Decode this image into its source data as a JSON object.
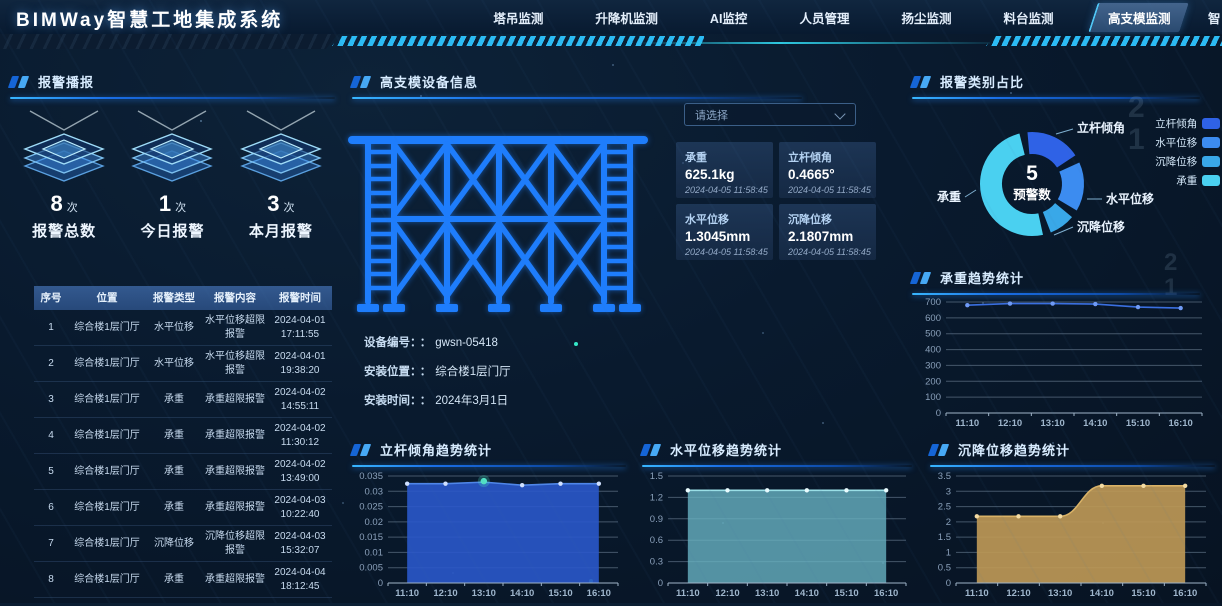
{
  "header": {
    "title": "BIMWay智慧工地集成系统",
    "tabs": [
      {
        "label": "塔吊监测",
        "active": false
      },
      {
        "label": "升降机监测",
        "active": false
      },
      {
        "label": "AI监控",
        "active": false
      },
      {
        "label": "人员管理",
        "active": false
      },
      {
        "label": "扬尘监测",
        "active": false
      },
      {
        "label": "料台监测",
        "active": false
      },
      {
        "label": "高支模监测",
        "active": true
      },
      {
        "label": "智",
        "active": false,
        "partial": true
      }
    ]
  },
  "alarm_panel": {
    "title": "报警播报",
    "stats": [
      {
        "value": "8",
        "unit": "次",
        "label": "报警总数"
      },
      {
        "value": "1",
        "unit": "次",
        "label": "今日报警"
      },
      {
        "value": "3",
        "unit": "次",
        "label": "本月报警"
      }
    ],
    "table": {
      "headers": [
        "序号",
        "位置",
        "报警类型",
        "报警内容",
        "报警时间"
      ],
      "rows": [
        [
          "1",
          "综合楼1层门厅",
          "水平位移",
          "水平位移超限报警",
          "2024-04-01 17:11:55"
        ],
        [
          "2",
          "综合楼1层门厅",
          "水平位移",
          "水平位移超限报警",
          "2024-04-01 19:38:20"
        ],
        [
          "3",
          "综合楼1层门厅",
          "承重",
          "承重超限报警",
          "2024-04-02 14:55:11"
        ],
        [
          "4",
          "综合楼1层门厅",
          "承重",
          "承重超限报警",
          "2024-04-02 11:30:12"
        ],
        [
          "5",
          "综合楼1层门厅",
          "承重",
          "承重超限报警",
          "2024-04-02 13:49:00"
        ],
        [
          "6",
          "综合楼1层门厅",
          "承重",
          "承重超限报警",
          "2024-04-03 10:22:40"
        ],
        [
          "7",
          "综合楼1层门厅",
          "沉降位移",
          "沉降位移超限报警",
          "2024-04-03 15:32:07"
        ],
        [
          "8",
          "综合楼1层门厅",
          "承重",
          "承重超限报警",
          "2024-04-04 18:12:45"
        ]
      ]
    }
  },
  "device_panel": {
    "title": "高支模设备信息",
    "select_placeholder": "请选择",
    "cards": [
      {
        "label": "承重",
        "value": "625.1kg",
        "time": "2024-04-05 11:58:45"
      },
      {
        "label": "立杆倾角",
        "value": "0.4665°",
        "time": "2024-04-05 11:58:45"
      },
      {
        "label": "水平位移",
        "value": "1.3045mm",
        "time": "2024-04-05 11:58:45"
      },
      {
        "label": "沉降位移",
        "value": "2.1807mm",
        "time": "2024-04-05 11:58:45"
      }
    ],
    "info": [
      {
        "label": "设备编号：",
        "colon": "：",
        "value": "gwsn-05418"
      },
      {
        "label": "安装位置：",
        "colon": "：",
        "value": "综合楼1层门厅"
      },
      {
        "label": "安装时间：",
        "colon": "：",
        "value": "2024年3月1日"
      }
    ]
  },
  "pie_panel": {
    "title": "报警类别占比"
  },
  "weight_panel": {
    "title": "承重趋势统计"
  },
  "tilt_panel": {
    "title": "立杆倾角趋势统计"
  },
  "horiz_panel": {
    "title": "水平位移趋势统计"
  },
  "settle_panel": {
    "title": "沉降位移趋势统计"
  },
  "decor": {
    "watermark1": "2\n1",
    "watermark2": "2\n1"
  },
  "chart_data": [
    {
      "id": "alarm-category",
      "type": "pie",
      "title": "报警类别占比",
      "center_value": "5",
      "center_label": "预警数",
      "legend_position": "right",
      "slices": [
        {
          "name": "立杆倾角",
          "pct": 19,
          "color": "#2f62e6"
        },
        {
          "name": "水平位移",
          "pct": 17,
          "color": "#3c8cf0"
        },
        {
          "name": "沉降位移",
          "pct": 9,
          "color": "#39a8e8"
        },
        {
          "name": "承重",
          "pct": 55,
          "color": "#4ad0f0"
        }
      ]
    },
    {
      "id": "weight-trend",
      "type": "line",
      "title": "承重趋势统计",
      "x": [
        "11:10",
        "12:10",
        "13:10",
        "14:10",
        "15:10",
        "16:10"
      ],
      "values": [
        680,
        690,
        690,
        687,
        668,
        662
      ],
      "ylim": [
        0,
        700
      ],
      "yticks": [
        0,
        100,
        200,
        300,
        400,
        500,
        600,
        700
      ],
      "color": "#3a6fe0",
      "grid": true
    },
    {
      "id": "tilt-trend",
      "type": "area",
      "title": "立杆倾角趋势统计",
      "x": [
        "11:10",
        "12:10",
        "13:10",
        "14:10",
        "15:10",
        "16:10"
      ],
      "values": [
        0.0325,
        0.0325,
        0.033,
        0.032,
        0.0325,
        0.0325
      ],
      "ylim": [
        0,
        0.035
      ],
      "yticks": [
        0,
        0.005,
        0.01,
        0.015,
        0.02,
        0.025,
        0.03,
        0.035
      ],
      "color": "#4f86e8",
      "fill": "rgba(42,88,202,0.9)",
      "highlight_index": 2,
      "grid": true
    },
    {
      "id": "horiz-trend",
      "type": "area",
      "title": "水平位移趋势统计",
      "x": [
        "11:10",
        "12:10",
        "13:10",
        "14:10",
        "15:10",
        "16:10"
      ],
      "values": [
        1.3,
        1.3,
        1.3,
        1.3,
        1.3,
        1.3
      ],
      "ylim": [
        0,
        1.5
      ],
      "yticks": [
        0,
        0.3,
        0.6,
        0.9,
        1.2,
        1.5
      ],
      "color": "#9adfe6",
      "fill": "rgba(104,178,194,0.8)",
      "grid": true
    },
    {
      "id": "settle-trend",
      "type": "area",
      "title": "沉降位移趋势统计",
      "x": [
        "11:10",
        "12:10",
        "13:10",
        "14:10",
        "15:10",
        "16:10"
      ],
      "values": [
        2.18,
        2.18,
        2.18,
        3.18,
        3.18,
        3.18
      ],
      "ylim": [
        0,
        3.5
      ],
      "yticks": [
        0,
        0.5,
        1,
        1.5,
        2,
        2.5,
        3,
        3.5
      ],
      "color": "#d9b267",
      "fill": "rgba(189,152,86,0.92)",
      "smooth": true,
      "grid": true
    }
  ]
}
